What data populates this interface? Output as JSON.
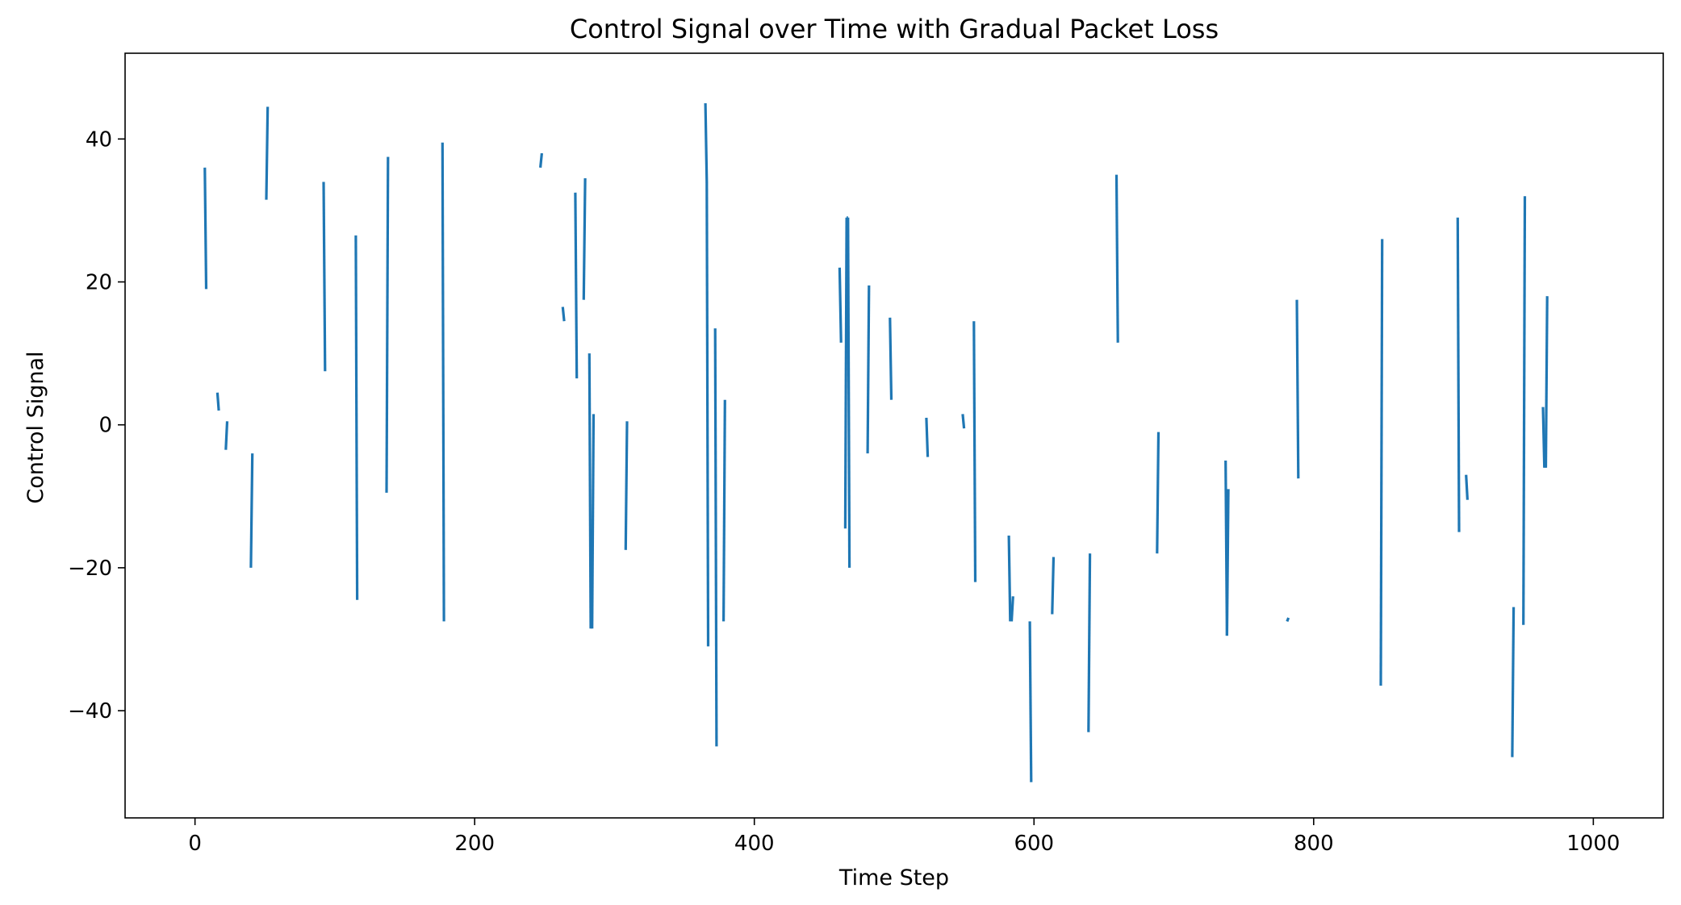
{
  "chart_data": {
    "type": "line",
    "title": "Control Signal over Time with Gradual Packet Loss",
    "xlabel": "Time Step",
    "ylabel": "Control Signal",
    "xlim": [
      -50,
      1050
    ],
    "ylim": [
      -55,
      52
    ],
    "xticks": [
      0,
      200,
      400,
      600,
      800,
      1000
    ],
    "yticks": [
      -40,
      -20,
      0,
      20,
      40
    ],
    "xtick_labels": [
      "0",
      "200",
      "400",
      "600",
      "800",
      "1000"
    ],
    "ytick_labels": [
      "−40",
      "−20",
      "0",
      "20",
      "40"
    ],
    "grid": false,
    "series": [
      {
        "color": "#1f77b4",
        "segments": [
          [
            [
              7,
              36
            ],
            [
              8,
              19
            ]
          ],
          [
            [
              16,
              4.5
            ],
            [
              17,
              2
            ]
          ],
          [
            [
              22,
              -3.5
            ],
            [
              23,
              0.5
            ]
          ],
          [
            [
              40,
              -20
            ],
            [
              41,
              -4
            ]
          ],
          [
            [
              51,
              31.5
            ],
            [
              52,
              44.5
            ]
          ],
          [
            [
              92,
              34
            ],
            [
              93,
              7.5
            ]
          ],
          [
            [
              115,
              26.5
            ],
            [
              116,
              -24.5
            ]
          ],
          [
            [
              137,
              -9.5
            ],
            [
              138,
              37.5
            ]
          ],
          [
            [
              177,
              39.5
            ],
            [
              178,
              -27.5
            ]
          ],
          [
            [
              247,
              36
            ],
            [
              248,
              38
            ]
          ],
          [
            [
              263,
              16.5
            ],
            [
              264,
              14.5
            ]
          ],
          [
            [
              272,
              32.5
            ],
            [
              273,
              6.5
            ]
          ],
          [
            [
              278,
              17.5
            ],
            [
              279,
              34.5
            ]
          ],
          [
            [
              282,
              10
            ],
            [
              283,
              -28.5
            ]
          ],
          [
            [
              284,
              -28.5
            ],
            [
              285,
              1.5
            ]
          ],
          [
            [
              308,
              -17.5
            ],
            [
              309,
              0.5
            ]
          ],
          [
            [
              365,
              45
            ],
            [
              366,
              34
            ]
          ],
          [
            [
              366,
              34
            ],
            [
              367,
              -31
            ]
          ],
          [
            [
              372,
              13.5
            ],
            [
              373,
              -45
            ]
          ],
          [
            [
              378,
              -27.5
            ],
            [
              379,
              3.5
            ]
          ],
          [
            [
              461,
              22
            ],
            [
              462,
              11.5
            ]
          ],
          [
            [
              465,
              -14.5
            ],
            [
              466,
              29
            ]
          ],
          [
            [
              466,
              29
            ],
            [
              467,
              29
            ]
          ],
          [
            [
              467,
              29
            ],
            [
              468,
              -20
            ]
          ],
          [
            [
              481,
              -4
            ],
            [
              482,
              19.5
            ]
          ],
          [
            [
              497,
              15
            ],
            [
              498,
              3.5
            ]
          ],
          [
            [
              523,
              1
            ],
            [
              524,
              -4.5
            ]
          ],
          [
            [
              549,
              1.5
            ],
            [
              550,
              -0.5
            ]
          ],
          [
            [
              557,
              14.5
            ],
            [
              558,
              -22
            ]
          ],
          [
            [
              582,
              -15.5
            ],
            [
              583,
              -27.5
            ]
          ],
          [
            [
              584,
              -27.5
            ],
            [
              585,
              -24
            ]
          ],
          [
            [
              597,
              -27.5
            ],
            [
              598,
              -50
            ]
          ],
          [
            [
              613,
              -26.5
            ],
            [
              614,
              -18.5
            ]
          ],
          [
            [
              639,
              -43
            ],
            [
              640,
              -18
            ]
          ],
          [
            [
              659,
              35
            ],
            [
              660,
              11.5
            ]
          ],
          [
            [
              688,
              -18
            ],
            [
              689,
              -1
            ]
          ],
          [
            [
              737,
              -5
            ],
            [
              738,
              -29.5
            ]
          ],
          [
            [
              738,
              -29.5
            ],
            [
              739,
              -9
            ]
          ],
          [
            [
              781,
              -27.5
            ],
            [
              782,
              -27
            ]
          ],
          [
            [
              788,
              17.5
            ],
            [
              789,
              -7.5
            ]
          ],
          [
            [
              848,
              -36.5
            ],
            [
              849,
              26
            ]
          ],
          [
            [
              903,
              29
            ],
            [
              904,
              -15
            ]
          ],
          [
            [
              909,
              -7
            ],
            [
              910,
              -10.5
            ]
          ],
          [
            [
              942,
              -46.5
            ],
            [
              943,
              -25.5
            ]
          ],
          [
            [
              950,
              -28
            ],
            [
              951,
              32
            ]
          ],
          [
            [
              964,
              2.5
            ],
            [
              965,
              -6
            ]
          ],
          [
            [
              966,
              -6
            ],
            [
              967,
              18
            ]
          ]
        ]
      }
    ]
  }
}
